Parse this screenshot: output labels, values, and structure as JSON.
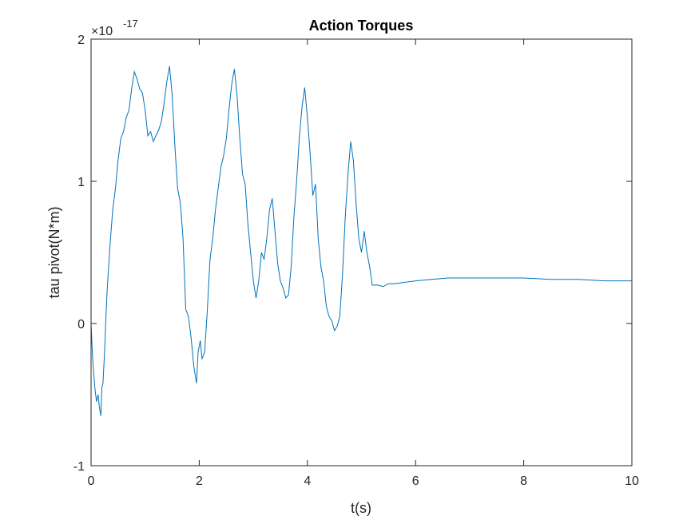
{
  "chart_data": {
    "type": "line",
    "title": "Action Torques",
    "xlabel": "t(s)",
    "ylabel": "tau pivot(N*m)",
    "xlim": [
      0,
      10
    ],
    "ylim": [
      -1,
      2
    ],
    "y_exponent_prefix": "×10",
    "y_exponent_power": "-17",
    "xticks": [
      0,
      2,
      4,
      6,
      8,
      10
    ],
    "xtick_labels": [
      "0",
      "2",
      "4",
      "6",
      "8",
      "10"
    ],
    "yticks": [
      -1,
      0,
      1,
      2
    ],
    "ytick_labels": [
      "-1",
      "0",
      "1",
      "2"
    ],
    "grid": false,
    "line_color": "#0072BD",
    "series": [
      {
        "x": [
          0,
          0.03,
          0.07,
          0.1,
          0.13,
          0.15,
          0.18,
          0.2,
          0.22,
          0.25,
          0.28,
          0.3,
          0.35,
          0.4,
          0.45,
          0.5,
          0.55,
          0.6,
          0.65,
          0.7,
          0.75,
          0.8,
          0.85,
          0.9,
          0.95,
          1.0,
          1.05,
          1.1,
          1.15,
          1.2,
          1.25,
          1.3,
          1.35,
          1.4,
          1.45,
          1.5,
          1.55,
          1.6,
          1.65,
          1.7,
          1.75,
          1.8,
          1.85,
          1.9,
          1.95,
          1.98,
          2.02,
          2.05,
          2.1,
          2.15,
          2.2,
          2.25,
          2.3,
          2.35,
          2.4,
          2.45,
          2.5,
          2.55,
          2.6,
          2.65,
          2.7,
          2.75,
          2.8,
          2.85,
          2.9,
          2.95,
          3.0,
          3.05,
          3.1,
          3.15,
          3.2,
          3.25,
          3.3,
          3.35,
          3.4,
          3.45,
          3.5,
          3.55,
          3.6,
          3.65,
          3.7,
          3.75,
          3.8,
          3.85,
          3.9,
          3.95,
          4.0,
          4.05,
          4.1,
          4.15,
          4.2,
          4.25,
          4.3,
          4.35,
          4.4,
          4.45,
          4.5,
          4.55,
          4.6,
          4.65,
          4.7,
          4.75,
          4.8,
          4.85,
          4.9,
          4.95,
          5.0,
          5.05,
          5.1,
          5.15,
          5.2,
          5.3,
          5.4,
          5.5,
          5.6,
          5.8,
          6.0,
          6.3,
          6.6,
          7.0,
          7.5,
          8.0,
          8.5,
          9.0,
          9.5,
          10.0
        ],
        "y": [
          0.0,
          -0.25,
          -0.45,
          -0.55,
          -0.5,
          -0.58,
          -0.65,
          -0.45,
          -0.42,
          -0.2,
          0.1,
          0.25,
          0.55,
          0.8,
          0.95,
          1.15,
          1.3,
          1.35,
          1.45,
          1.5,
          1.65,
          1.77,
          1.72,
          1.65,
          1.62,
          1.5,
          1.32,
          1.35,
          1.28,
          1.32,
          1.36,
          1.42,
          1.55,
          1.7,
          1.81,
          1.6,
          1.25,
          0.95,
          0.85,
          0.6,
          0.1,
          0.05,
          -0.1,
          -0.3,
          -0.42,
          -0.2,
          -0.12,
          -0.25,
          -0.2,
          0.1,
          0.45,
          0.6,
          0.8,
          0.95,
          1.1,
          1.18,
          1.3,
          1.5,
          1.68,
          1.79,
          1.6,
          1.3,
          1.05,
          0.98,
          0.7,
          0.5,
          0.3,
          0.18,
          0.3,
          0.5,
          0.45,
          0.6,
          0.8,
          0.88,
          0.65,
          0.42,
          0.3,
          0.25,
          0.18,
          0.2,
          0.4,
          0.75,
          1.0,
          1.3,
          1.52,
          1.66,
          1.45,
          1.2,
          0.9,
          0.98,
          0.6,
          0.4,
          0.3,
          0.12,
          0.05,
          0.02,
          -0.05,
          -0.02,
          0.05,
          0.35,
          0.75,
          1.05,
          1.28,
          1.15,
          0.85,
          0.6,
          0.5,
          0.65,
          0.5,
          0.4,
          0.27,
          0.27,
          0.26,
          0.28,
          0.28,
          0.29,
          0.3,
          0.31,
          0.32,
          0.32,
          0.32,
          0.32,
          0.31,
          0.31,
          0.3,
          0.3
        ]
      }
    ]
  }
}
